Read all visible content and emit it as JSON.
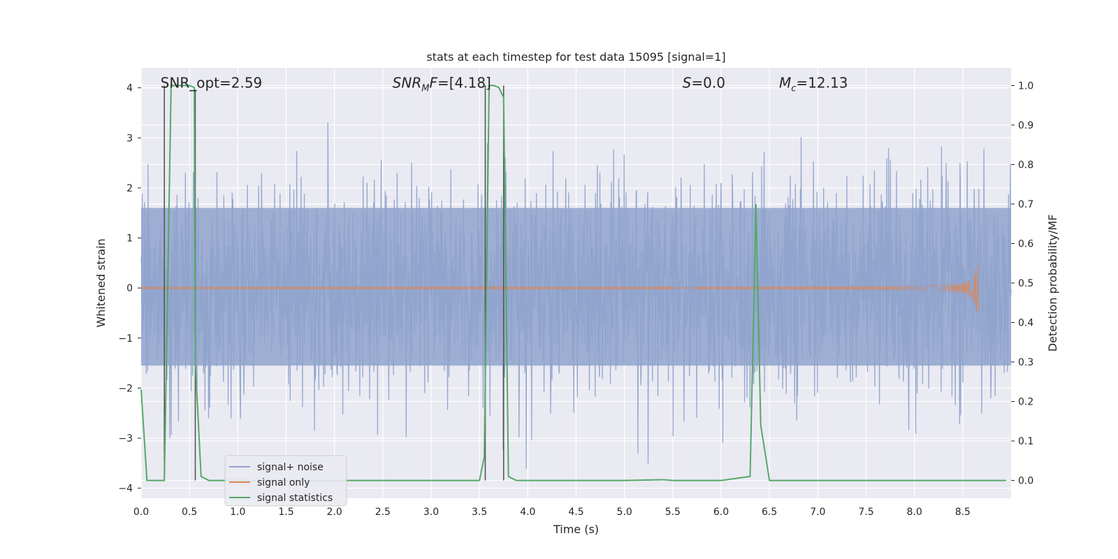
{
  "chart_data": {
    "type": "line",
    "title": "stats at each timestep for test data 15095 [signal=1]",
    "xlabel": "Time (s)",
    "ylabel_left": "Whitened strain",
    "ylabel_right": "Detection probability/MF",
    "xlim": [
      0.0,
      9.0
    ],
    "ylim_left": [
      -4.2,
      4.4
    ],
    "ylim_right": [
      -0.045,
      1.045
    ],
    "xticks": [
      0.0,
      0.5,
      1.0,
      1.5,
      2.0,
      2.5,
      3.0,
      3.5,
      4.0,
      4.5,
      5.0,
      5.5,
      6.0,
      6.5,
      7.0,
      7.5,
      8.0,
      8.5
    ],
    "xtick_labels": [
      "0.0",
      "0.5",
      "1.0",
      "1.5",
      "2.0",
      "2.5",
      "3.0",
      "3.5",
      "4.0",
      "4.5",
      "5.0",
      "5.5",
      "6.0",
      "6.5",
      "7.0",
      "7.5",
      "8.0",
      "8.5"
    ],
    "yticks_left": [
      4,
      3,
      2,
      1,
      0,
      -1,
      -2,
      -3,
      -4
    ],
    "ytick_labels_left": [
      "4",
      "3",
      "2",
      "1",
      "0",
      "−1",
      "−2",
      "−3",
      "−4"
    ],
    "yticks_right": [
      1.0,
      0.9,
      0.8,
      0.7,
      0.6,
      0.5,
      0.4,
      0.3,
      0.2,
      0.1,
      0.0
    ],
    "ytick_labels_right": [
      "1.0",
      "0.9",
      "0.8",
      "0.7",
      "0.6",
      "0.5",
      "0.4",
      "0.3",
      "0.2",
      "0.1",
      "0.0"
    ],
    "annotations": [
      {
        "text": "SNR_opt=2.59",
        "x": 0.2,
        "y": 4.1
      },
      {
        "text": "SNRMF=[4.18]",
        "x": 2.6,
        "y": 4.1
      },
      {
        "text": "S=0.0",
        "x": 5.6,
        "y": 4.1
      },
      {
        "text": "Mc=12.13",
        "x": 6.6,
        "y": 4.1
      }
    ],
    "legend": {
      "placement": "lower-left",
      "entries": [
        "signal+ noise",
        "signal only",
        "signal statistics"
      ]
    },
    "colors": {
      "noise": "#8fa3cc",
      "signal": "#dd8452",
      "stats": "#55a868",
      "vlines": "#555555",
      "background": "#eaeaf2",
      "grid": "#ffffff"
    },
    "series": [
      {
        "name": "signal+ noise",
        "axis": "left",
        "description_values": {
          "typical_band": [
            -1.6,
            1.7
          ],
          "max": 4.0,
          "min": -3.7
        }
      },
      {
        "name": "signal only",
        "axis": "left",
        "chirp_end_time": 8.67,
        "peak_amplitude": 0.5
      },
      {
        "name": "signal statistics",
        "axis": "right",
        "x": [
          0.0,
          0.06,
          0.24,
          0.31,
          0.36,
          0.43,
          0.5,
          0.55,
          0.56,
          0.62,
          0.7,
          1.0,
          2.0,
          3.0,
          3.5,
          3.55,
          3.6,
          3.65,
          3.7,
          3.75,
          3.8,
          3.88,
          4.5,
          5.0,
          5.4,
          5.5,
          6.0,
          6.3,
          6.36,
          6.41,
          6.5,
          7.0,
          8.0,
          8.95
        ],
        "y": [
          0.23,
          0.0,
          0.0,
          1.0,
          1.0,
          1.0,
          1.0,
          0.995,
          0.3,
          0.01,
          0.0,
          0.0,
          0.0,
          0.0,
          0.0,
          0.06,
          1.0,
          1.0,
          0.995,
          0.97,
          0.01,
          0.0,
          0.0,
          0.0,
          0.002,
          0.0,
          0.0,
          0.01,
          0.7,
          0.14,
          0.0,
          0.0,
          0.0,
          0.0
        ]
      }
    ],
    "vlines": [
      {
        "x": 0.24,
        "y_range_right": [
          0.0,
          1.0
        ]
      },
      {
        "x": 0.56,
        "y_range_right": [
          0.0,
          0.99
        ]
      },
      {
        "x": 3.56,
        "y_range_right": [
          0.0,
          1.0
        ]
      },
      {
        "x": 3.75,
        "y_range_right": [
          0.0,
          1.0
        ]
      }
    ]
  }
}
